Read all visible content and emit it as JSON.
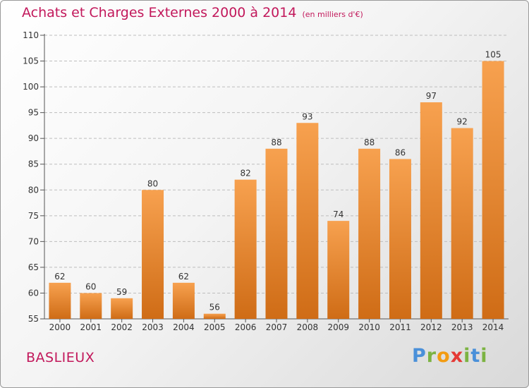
{
  "header": {
    "title": "Achats et Charges Externes 2000 à 2014",
    "unit": "(en milliers d'€)"
  },
  "footer": {
    "commune": "BASLIEUX",
    "brand": {
      "letters": [
        "P",
        "r",
        "o",
        "x",
        "i",
        "t",
        "i"
      ],
      "colors": [
        "#4a90d9",
        "#7cb342",
        "#f39c12",
        "#e53935",
        "#7cb342",
        "#4a90d9",
        "#7cb342"
      ]
    }
  },
  "chart_data": {
    "type": "bar",
    "categories": [
      "2000",
      "2001",
      "2002",
      "2003",
      "2004",
      "2005",
      "2006",
      "2007",
      "2008",
      "2009",
      "2010",
      "2011",
      "2012",
      "2013",
      "2014"
    ],
    "values": [
      62,
      60,
      59,
      80,
      62,
      56,
      82,
      88,
      93,
      74,
      88,
      86,
      97,
      92,
      105
    ],
    "ylim": [
      55,
      110
    ],
    "yticks": [
      55,
      60,
      65,
      70,
      75,
      80,
      85,
      90,
      95,
      100,
      105,
      110
    ],
    "grid": "horizontal dashed",
    "bar_color_top": "#f7a14f",
    "bar_color_bottom": "#cf6c16"
  }
}
